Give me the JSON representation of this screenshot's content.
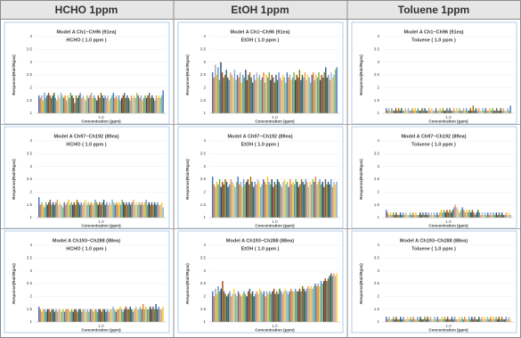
{
  "column_headers": [
    "HCHO 1ppm",
    "EtOH 1ppm",
    "Toluene 1ppm"
  ],
  "bar_colors": [
    "#4472c4",
    "#ed7d31",
    "#a5a5a5",
    "#ffc000",
    "#5b9bd5",
    "#70ad47",
    "#264478",
    "#9e480e",
    "#636363",
    "#997300",
    "#255e91",
    "#43682b",
    "#698ed0",
    "#f1975a",
    "#b7b7b7",
    "#ffcd33",
    "#7cafdd",
    "#8cc168"
  ],
  "chart_data": [
    {
      "type": "bar",
      "title": "Model A Ch1~Ch96 (91ea)",
      "subtitle": "HCHO ( 1.0 ppm )",
      "x_label": "Concentration (ppm)",
      "y_label": "Response(Rair/Rgas)",
      "category": "1.0",
      "ylim": [
        1,
        4
      ],
      "yticks": [
        1,
        1.5,
        2,
        2.5,
        3,
        3.5,
        4
      ],
      "grid": true,
      "values": [
        1.7,
        1.6,
        1.7,
        1.5,
        1.8,
        1.6,
        1.7,
        1.8,
        1.7,
        1.6,
        1.7,
        1.8,
        1.6,
        1.5,
        1.7,
        1.6,
        1.8,
        1.7,
        1.6,
        1.7,
        1.5,
        1.7,
        1.6,
        1.8,
        1.7,
        1.6,
        1.4,
        1.7,
        1.6,
        1.7,
        1.8,
        1.6,
        1.7,
        1.6,
        1.5,
        1.7,
        1.6,
        1.7,
        1.8,
        1.6,
        1.7,
        1.6,
        1.5,
        1.7,
        1.6,
        1.8,
        1.7,
        1.6,
        1.7,
        1.6,
        1.7,
        1.5,
        1.6,
        1.7,
        1.8,
        1.6,
        1.7,
        1.6,
        1.7,
        1.5,
        1.6,
        1.7,
        1.8,
        1.6,
        1.7,
        1.6,
        1.5,
        1.7,
        1.6,
        1.7,
        1.6,
        1.8,
        1.7,
        1.6,
        1.7,
        1.5,
        1.6,
        1.7,
        1.6,
        1.7,
        1.8,
        1.6,
        1.7,
        1.6,
        1.5,
        1.7,
        1.6,
        1.7,
        1.6,
        1.7,
        1.9
      ]
    },
    {
      "type": "bar",
      "title": "Model A Ch1~Ch96 (91ea)",
      "subtitle": "EtOH ( 1.0 ppm )",
      "x_label": "Concentration (ppm)",
      "y_label": "Response(Rair/Rgas)",
      "category": "1.0",
      "ylim": [
        1,
        4
      ],
      "yticks": [
        1,
        1.5,
        2,
        2.5,
        3,
        3.5,
        4
      ],
      "grid": true,
      "values": [
        2.6,
        2.4,
        2.9,
        2.5,
        2.8,
        2.3,
        3.0,
        2.6,
        2.4,
        2.5,
        2.7,
        2.4,
        2.3,
        2.6,
        2.5,
        2.4,
        2.7,
        2.3,
        2.5,
        2.4,
        2.6,
        2.2,
        2.5,
        2.4,
        2.7,
        2.3,
        2.5,
        2.6,
        2.4,
        2.2,
        2.5,
        2.3,
        2.6,
        2.4,
        2.5,
        2.3,
        2.4,
        2.6,
        2.2,
        2.5,
        2.4,
        2.6,
        2.3,
        2.5,
        2.4,
        2.2,
        2.5,
        2.3,
        2.6,
        2.4,
        2.3,
        2.5,
        2.4,
        2.2,
        2.6,
        2.4,
        2.5,
        2.3,
        2.4,
        2.6,
        2.3,
        2.5,
        2.4,
        2.7,
        2.3,
        2.5,
        2.4,
        2.6,
        2.3,
        2.5,
        2.4,
        2.2,
        2.5,
        2.6,
        2.3,
        2.5,
        2.4,
        2.6,
        2.3,
        2.5,
        2.4,
        2.6,
        2.8,
        2.4,
        2.5,
        2.3,
        2.6,
        2.4,
        2.5,
        2.7,
        2.8
      ]
    },
    {
      "type": "bar",
      "title": "Model A Ch1~Ch96 (91ea)",
      "subtitle": "Toluene ( 1.0 ppm )",
      "x_label": "Concentration (ppm)",
      "y_label": "Response(Rair/Rgas)",
      "category": "1.0",
      "ylim": [
        1,
        4
      ],
      "yticks": [
        1,
        1.5,
        2,
        2.5,
        3,
        3.5,
        4
      ],
      "grid": true,
      "values": [
        1.2,
        1.1,
        1.2,
        1.1,
        1.2,
        1.1,
        1.1,
        1.2,
        1.1,
        1.2,
        1.1,
        1.2,
        1.1,
        1.1,
        1.2,
        1.1,
        1.2,
        1.1,
        1.1,
        1.2,
        1.1,
        1.2,
        1.1,
        1.2,
        1.1,
        1.1,
        1.2,
        1.1,
        1.2,
        1.1,
        1.1,
        1.2,
        1.1,
        1.2,
        1.1,
        1.1,
        1.2,
        1.1,
        1.1,
        1.2,
        1.1,
        1.2,
        1.1,
        1.1,
        1.2,
        1.1,
        1.2,
        1.1,
        1.1,
        1.2,
        1.1,
        1.2,
        1.1,
        1.2,
        1.1,
        1.1,
        1.2,
        1.1,
        1.2,
        1.1,
        1.1,
        1.2,
        1.1,
        1.3,
        1.1,
        1.2,
        1.1,
        1.2,
        1.1,
        1.1,
        1.2,
        1.1,
        1.2,
        1.1,
        1.1,
        1.2,
        1.1,
        1.2,
        1.1,
        1.1,
        1.2,
        1.1,
        1.1,
        1.2,
        1.1,
        1.2,
        1.1,
        1.1,
        1.2,
        1.1,
        1.3
      ]
    },
    {
      "type": "bar",
      "title": "Model A Ch97~Ch192 (89ea)",
      "subtitle": "HCHO ( 1.0 ppm )",
      "x_label": "Concentration (ppm)",
      "y_label": "Response(Rair/Rgas)",
      "category": "1.0",
      "ylim": [
        1,
        4
      ],
      "yticks": [
        1,
        1.5,
        2,
        2.5,
        3,
        3.5,
        4
      ],
      "grid": true,
      "values": [
        1.8,
        1.5,
        1.6,
        1.5,
        1.4,
        1.6,
        1.5,
        1.6,
        1.7,
        1.5,
        1.6,
        1.5,
        1.6,
        1.7,
        1.5,
        1.6,
        1.5,
        1.4,
        1.6,
        1.5,
        1.6,
        1.7,
        1.5,
        1.6,
        1.5,
        1.6,
        1.5,
        1.7,
        1.6,
        1.5,
        1.6,
        1.5,
        1.6,
        1.7,
        1.5,
        1.6,
        1.5,
        1.6,
        1.5,
        1.6,
        1.7,
        1.6,
        1.5,
        1.6,
        1.5,
        1.6,
        1.7,
        1.5,
        1.6,
        1.5,
        1.6,
        1.5,
        1.7,
        1.6,
        1.5,
        1.6,
        1.5,
        1.6,
        1.5,
        1.7,
        1.6,
        1.5,
        1.6,
        1.5,
        1.6,
        1.5,
        1.6,
        1.7,
        1.5,
        1.6,
        1.5,
        1.6,
        1.5,
        1.6,
        1.5,
        1.6,
        1.7,
        1.5,
        1.6,
        1.5,
        1.6,
        1.5,
        1.6,
        1.5,
        1.6,
        1.5,
        1.5,
        1.6,
        1.4
      ]
    },
    {
      "type": "bar",
      "title": "Model A Ch97~Ch192 (89ea)",
      "subtitle": "EtOH ( 1.0 ppm )",
      "x_label": "Concentration (ppm)",
      "y_label": "Response(Rair/Rgas)",
      "category": "1.0",
      "ylim": [
        1,
        4
      ],
      "yticks": [
        1,
        1.5,
        2,
        2.5,
        3,
        3.5,
        4
      ],
      "grid": true,
      "values": [
        2.6,
        2.3,
        2.2,
        2.4,
        2.3,
        2.5,
        2.2,
        2.4,
        2.3,
        2.5,
        2.4,
        2.2,
        2.3,
        2.5,
        2.4,
        2.3,
        2.2,
        2.4,
        2.6,
        2.3,
        2.4,
        2.2,
        2.5,
        2.3,
        2.4,
        2.5,
        2.3,
        2.6,
        2.4,
        2.2,
        2.4,
        2.3,
        2.5,
        2.4,
        2.2,
        2.3,
        2.5,
        2.4,
        2.3,
        2.6,
        2.4,
        2.3,
        2.5,
        2.2,
        2.4,
        2.3,
        2.5,
        2.4,
        2.3,
        2.2,
        2.4,
        2.5,
        2.3,
        2.4,
        2.2,
        2.5,
        2.3,
        2.4,
        2.3,
        2.5,
        2.4,
        2.2,
        2.3,
        2.5,
        2.4,
        2.3,
        2.5,
        2.4,
        2.2,
        2.4,
        2.3,
        2.5,
        2.4,
        2.6,
        2.3,
        2.4,
        2.5,
        2.3,
        2.4,
        2.2,
        2.5,
        2.3,
        2.4,
        2.3,
        2.5,
        2.2,
        2.4,
        2.3,
        2.4
      ]
    },
    {
      "type": "bar",
      "title": "Model A Ch97~Ch192 (89ea)",
      "subtitle": "Toluene ( 1.0 ppm )",
      "x_label": "Concentration (ppm)",
      "y_label": "Response(Rair/Rgas)",
      "category": "1.0",
      "ylim": [
        1,
        4
      ],
      "yticks": [
        1,
        1.5,
        2,
        2.5,
        3,
        3.5,
        4
      ],
      "grid": true,
      "values": [
        1.3,
        1.2,
        1.1,
        1.2,
        1.1,
        1.2,
        1.1,
        1.2,
        1.1,
        1.1,
        1.2,
        1.1,
        1.2,
        1.1,
        1.2,
        1.1,
        1.1,
        1.2,
        1.1,
        1.2,
        1.1,
        1.2,
        1.1,
        1.1,
        1.2,
        1.1,
        1.2,
        1.1,
        1.2,
        1.1,
        1.2,
        1.1,
        1.2,
        1.1,
        1.2,
        1.1,
        1.2,
        1.1,
        1.2,
        1.3,
        1.2,
        1.3,
        1.2,
        1.3,
        1.2,
        1.3,
        1.2,
        1.3,
        1.4,
        1.5,
        1.4,
        1.3,
        1.2,
        1.3,
        1.4,
        1.3,
        1.2,
        1.3,
        1.2,
        1.3,
        1.2,
        1.3,
        1.2,
        1.1,
        1.2,
        1.3,
        1.2,
        1.1,
        1.2,
        1.1,
        1.2,
        1.1,
        1.2,
        1.1,
        1.2,
        1.1,
        1.2,
        1.1,
        1.2,
        1.1,
        1.2,
        1.1,
        1.2,
        1.1,
        1.1,
        1.2,
        1.1,
        1.2,
        1.1
      ]
    },
    {
      "type": "bar",
      "title": "Model A Ch193~Ch288 (88ea)",
      "subtitle": "HCHO ( 1.0 ppm )",
      "x_label": "Concentration (ppm)",
      "y_label": "Response(Rair/Rgas)",
      "category": "1.0",
      "ylim": [
        1,
        4
      ],
      "yticks": [
        1,
        1.5,
        2,
        2.5,
        3,
        3.5,
        4
      ],
      "grid": true,
      "values": [
        1.6,
        1.5,
        1.4,
        1.5,
        1.5,
        1.4,
        1.5,
        1.5,
        1.4,
        1.5,
        1.5,
        1.4,
        1.5,
        1.4,
        1.5,
        1.5,
        1.4,
        1.5,
        1.4,
        1.5,
        1.5,
        1.5,
        1.4,
        1.5,
        1.4,
        1.5,
        1.5,
        1.4,
        1.5,
        1.5,
        1.4,
        1.5,
        1.5,
        1.4,
        1.5,
        1.4,
        1.5,
        1.5,
        1.4,
        1.5,
        1.5,
        1.4,
        1.5,
        1.5,
        1.4,
        1.5,
        1.5,
        1.4,
        1.5,
        1.4,
        1.5,
        1.5,
        1.6,
        1.5,
        1.4,
        1.5,
        1.5,
        1.6,
        1.5,
        1.4,
        1.5,
        1.6,
        1.5,
        1.5,
        1.6,
        1.5,
        1.4,
        1.5,
        1.6,
        1.5,
        1.5,
        1.6,
        1.5,
        1.7,
        1.5,
        1.6,
        1.5,
        1.5,
        1.6,
        1.5,
        1.6,
        1.5,
        1.7,
        1.5,
        1.6,
        1.5,
        1.5,
        1.6
      ]
    },
    {
      "type": "bar",
      "title": "Model A Ch193~Ch288 (88ea)",
      "subtitle": "EtOH ( 1.0 ppm )",
      "x_label": "Concentration (ppm)",
      "y_label": "Response(Rair/Rgas)",
      "category": "1.0",
      "ylim": [
        1,
        4
      ],
      "yticks": [
        1,
        1.5,
        2,
        2.5,
        3,
        3.5,
        4
      ],
      "grid": true,
      "values": [
        2.2,
        2.0,
        2.3,
        2.1,
        2.4,
        2.2,
        2.3,
        2.6,
        2.2,
        2.1,
        2.0,
        2.1,
        2.2,
        2.0,
        2.1,
        2.3,
        2.1,
        2.0,
        2.2,
        2.1,
        2.0,
        2.1,
        2.2,
        2.1,
        2.0,
        2.2,
        2.3,
        2.1,
        2.2,
        2.0,
        2.1,
        2.2,
        2.1,
        2.3,
        2.2,
        2.1,
        2.2,
        2.0,
        2.2,
        2.1,
        2.2,
        2.1,
        2.2,
        2.3,
        2.1,
        2.2,
        2.1,
        2.3,
        2.2,
        2.1,
        2.2,
        2.3,
        2.2,
        2.1,
        2.2,
        2.3,
        2.2,
        2.2,
        2.3,
        2.2,
        2.2,
        2.3,
        2.2,
        2.4,
        2.3,
        2.2,
        2.3,
        2.4,
        2.3,
        2.4,
        2.3,
        2.4,
        2.5,
        2.4,
        2.5,
        2.4,
        2.6,
        2.5,
        2.6,
        2.7,
        2.6,
        2.7,
        2.8,
        2.9,
        2.8,
        2.9,
        2.8,
        2.9
      ]
    },
    {
      "type": "bar",
      "title": "Model A Ch193~Ch288 (88ea)",
      "subtitle": "Toluene ( 1.0 ppm )",
      "x_label": "Concentration (ppm)",
      "y_label": "Response(Rair/Rgas)",
      "category": "1.0",
      "ylim": [
        1,
        4
      ],
      "yticks": [
        1,
        1.5,
        2,
        2.5,
        3,
        3.5,
        4
      ],
      "grid": true,
      "values": [
        1.2,
        1.1,
        1.2,
        1.1,
        1.1,
        1.2,
        1.1,
        1.2,
        1.1,
        1.1,
        1.2,
        1.1,
        1.2,
        1.1,
        1.1,
        1.2,
        1.1,
        1.2,
        1.1,
        1.2,
        1.1,
        1.1,
        1.2,
        1.1,
        1.2,
        1.1,
        1.1,
        1.2,
        1.1,
        1.2,
        1.1,
        1.2,
        1.1,
        1.1,
        1.2,
        1.1,
        1.2,
        1.1,
        1.1,
        1.2,
        1.1,
        1.2,
        1.1,
        1.2,
        1.1,
        1.1,
        1.2,
        1.1,
        1.2,
        1.1,
        1.1,
        1.2,
        1.1,
        1.2,
        1.1,
        1.2,
        1.1,
        1.1,
        1.2,
        1.1,
        1.2,
        1.1,
        1.2,
        1.1,
        1.1,
        1.2,
        1.1,
        1.2,
        1.1,
        1.2,
        1.1,
        1.2,
        1.1,
        1.2,
        1.1,
        1.2,
        1.1,
        1.2,
        1.1,
        1.2,
        1.1,
        1.2,
        1.1,
        1.1,
        1.2,
        1.1,
        1.2,
        1.1
      ]
    }
  ]
}
